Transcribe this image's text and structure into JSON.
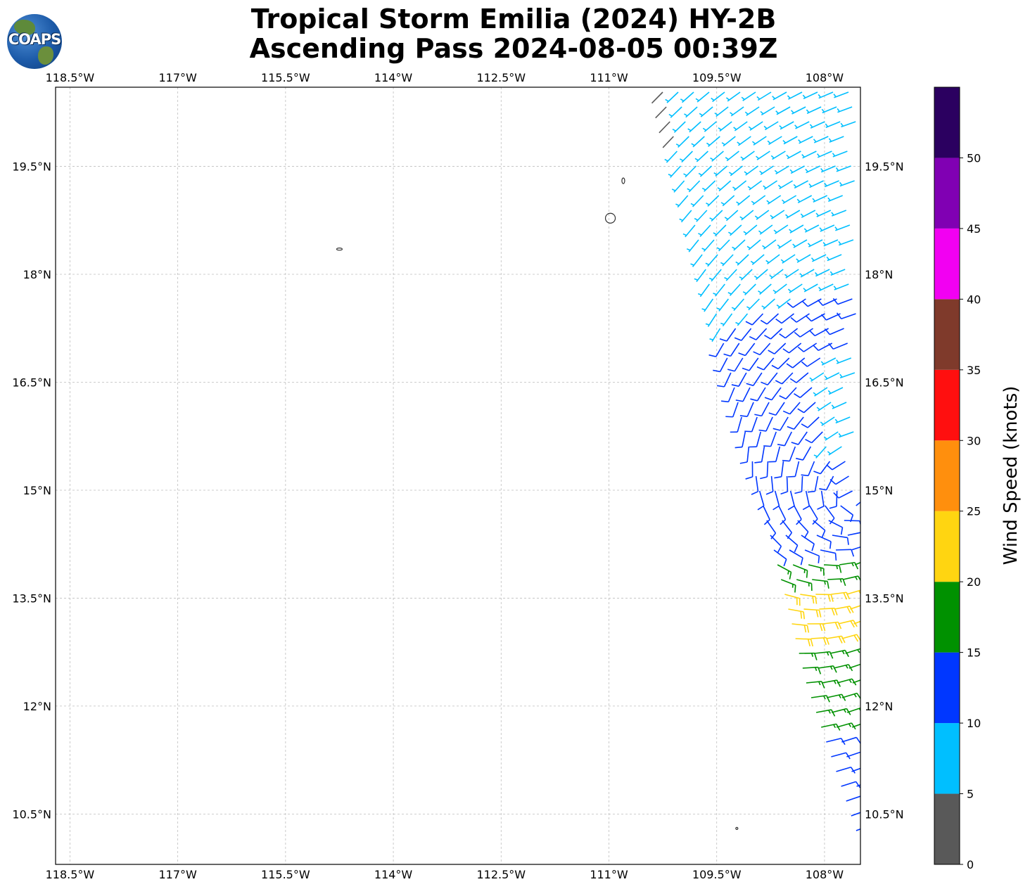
{
  "title": {
    "line1": "Tropical Storm Emilia (2024) HY-2B",
    "line2": "Ascending Pass 2024-08-05 00:39Z"
  },
  "logo": {
    "text": "COAPS"
  },
  "map": {
    "lon_range": [
      -118.7,
      -107.5
    ],
    "lat_range": [
      9.8,
      20.6
    ],
    "lon_ticks": [
      {
        "value": -118.5,
        "label": "118.5°W"
      },
      {
        "value": -117.0,
        "label": "117°W"
      },
      {
        "value": -115.5,
        "label": "115.5°W"
      },
      {
        "value": -114.0,
        "label": "114°W"
      },
      {
        "value": -112.5,
        "label": "112.5°W"
      },
      {
        "value": -111.0,
        "label": "111°W"
      },
      {
        "value": -109.5,
        "label": "109.5°W"
      },
      {
        "value": -108.0,
        "label": "108°W"
      }
    ],
    "lat_ticks": [
      {
        "value": 19.5,
        "label": "19.5°N"
      },
      {
        "value": 18.0,
        "label": "18°N"
      },
      {
        "value": 16.5,
        "label": "16.5°N"
      },
      {
        "value": 15.0,
        "label": "15°N"
      },
      {
        "value": 13.5,
        "label": "13.5°N"
      },
      {
        "value": 12.0,
        "label": "12°N"
      },
      {
        "value": 10.5,
        "label": "10.5°N"
      }
    ],
    "gridlines": true,
    "islands": [
      {
        "name": "Isla Clarion",
        "lon": -114.75,
        "lat": 18.35
      },
      {
        "name": "Isla Socorro",
        "lon": -110.98,
        "lat": 18.78
      },
      {
        "name": "Isla San Benedicto",
        "lon": -110.8,
        "lat": 19.3
      },
      {
        "name": "Clipperton",
        "lon": -109.22,
        "lat": 10.3
      }
    ]
  },
  "colorbar": {
    "label": "Wind Speed (knots)",
    "bins": [
      {
        "from": 0,
        "to": 5,
        "color": "#595959"
      },
      {
        "from": 5,
        "to": 10,
        "color": "#00bfff"
      },
      {
        "from": 10,
        "to": 15,
        "color": "#0037ff"
      },
      {
        "from": 15,
        "to": 20,
        "color": "#009100"
      },
      {
        "from": 20,
        "to": 25,
        "color": "#ffd511"
      },
      {
        "from": 25,
        "to": 30,
        "color": "#ff8f0d"
      },
      {
        "from": 30,
        "to": 35,
        "color": "#ff0f0f"
      },
      {
        "from": 35,
        "to": 40,
        "color": "#7f3a2b"
      },
      {
        "from": 40,
        "to": 45,
        "color": "#f200f2"
      },
      {
        "from": 45,
        "to": 50,
        "color": "#8000b3"
      },
      {
        "from": 50,
        "to": 55,
        "color": "#2b0060"
      }
    ],
    "tick_labels": [
      "0",
      "5",
      "10",
      "15",
      "20",
      "25",
      "30",
      "35",
      "40",
      "45",
      "50"
    ]
  }
}
